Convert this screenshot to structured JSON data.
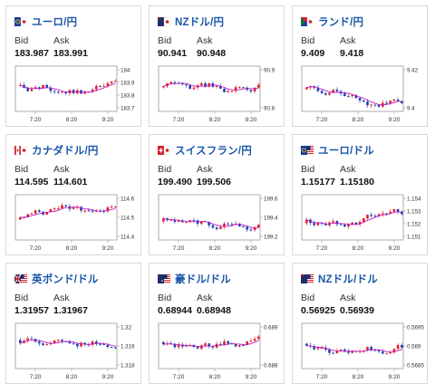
{
  "labels": {
    "bid": "Bid",
    "ask": "Ask"
  },
  "times": [
    "7:20",
    "8:20",
    "9:20"
  ],
  "colors": {
    "up": "#e0202a",
    "down": "#1a3fb0",
    "ma": "#c020c0",
    "pair_text": "#1a57a8"
  },
  "cards": [
    {
      "pair": "ユーロ/円",
      "flag": "eu-jp-flag",
      "bid": "183.987",
      "ask": "183.991",
      "y_ticks": [
        "184",
        "183.9",
        "183.8",
        "183.7"
      ]
    },
    {
      "pair": "NZドル/円",
      "flag": "nz-jp-flag",
      "bid": "90.941",
      "ask": "90.948",
      "y_ticks": [
        "90.9",
        "90.8"
      ]
    },
    {
      "pair": "ランド/円",
      "flag": "za-jp-flag",
      "bid": "9.409",
      "ask": "9.418",
      "y_ticks": [
        "9.42",
        "9.4"
      ]
    },
    {
      "pair": "カナダドル/円",
      "flag": "ca-jp-flag",
      "bid": "114.595",
      "ask": "114.601",
      "y_ticks": [
        "114.6",
        "114.5",
        "114.4"
      ]
    },
    {
      "pair": "スイスフラン/円",
      "flag": "ch-jp-flag",
      "bid": "199.490",
      "ask": "199.506",
      "y_ticks": [
        "199.6",
        "199.4",
        "199.2"
      ]
    },
    {
      "pair": "ユーロ/ドル",
      "flag": "eu-us-flag",
      "bid": "1.15177",
      "ask": "1.15180",
      "y_ticks": [
        "1.154",
        "1.153",
        "1.152",
        "1.151"
      ]
    },
    {
      "pair": "英ポンド/ドル",
      "flag": "gb-us-flag",
      "bid": "1.31957",
      "ask": "1.31967",
      "y_ticks": [
        "1.32",
        "1.319",
        "1.318"
      ]
    },
    {
      "pair": "豪ドル/ドル",
      "flag": "au-us-flag",
      "bid": "0.68944",
      "ask": "0.68948",
      "y_ticks": [
        "0.689",
        "0.688"
      ]
    },
    {
      "pair": "NZドル/ドル",
      "flag": "nz-us-flag",
      "bid": "0.56925",
      "ask": "0.56939",
      "y_ticks": [
        "0.5695",
        "0.569",
        "0.5685"
      ]
    }
  ]
}
